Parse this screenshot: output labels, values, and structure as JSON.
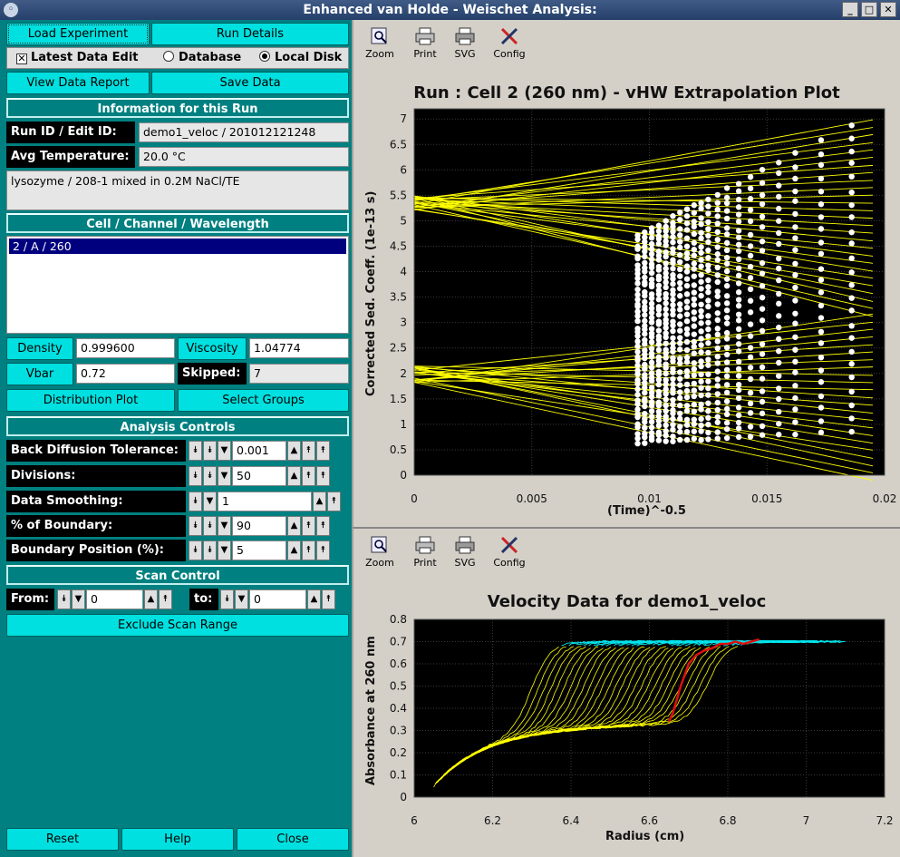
{
  "window": {
    "title": "Enhanced van Holde - Weischet Analysis:",
    "menu_glyph": "◦",
    "min_glyph": "_",
    "max_glyph": "□",
    "close_glyph": "✕"
  },
  "left": {
    "load_experiment": "Load Experiment",
    "run_details": "Run Details",
    "latest_data_edit": "Latest Data Edit",
    "latest_checked_glyph": "✕",
    "database": "Database",
    "local_disk": "Local Disk",
    "view_data_report": "View Data Report",
    "save_data": "Save Data",
    "info_header": "Information for this Run",
    "run_id_label": "Run ID / Edit ID:",
    "run_id_value": "demo1_veloc / 201012121248",
    "avg_temp_label": "Avg Temperature:",
    "avg_temp_value": "20.0 °C",
    "description": "lysozyme / 208-1 mixed in 0.2M NaCl/TE",
    "ccw_header": "Cell / Channel / Wavelength",
    "ccw_items": [
      "2 / A / 260"
    ],
    "density_label": "Density",
    "density_value": "0.999600",
    "viscosity_label": "Viscosity",
    "viscosity_value": "1.04774",
    "vbar_label": "Vbar",
    "vbar_value": "0.72",
    "skipped_label": "Skipped:",
    "skipped_value": "7",
    "distribution_plot": "Distribution Plot",
    "select_groups": "Select Groups",
    "analysis_header": "Analysis Controls",
    "back_diffusion_label": "Back Diffusion Tolerance:",
    "back_diffusion_value": "0.001",
    "divisions_label": "Divisions:",
    "divisions_value": "50",
    "smoothing_label": "Data Smoothing:",
    "smoothing_value": "1",
    "boundary_label": "% of Boundary:",
    "boundary_value": "90",
    "boundary_pos_label": "Boundary Position (%):",
    "boundary_pos_value": "5",
    "scan_header": "Scan Control",
    "from_label": "From:",
    "from_value": "0",
    "to_label": "to:",
    "to_value": "0",
    "exclude_scan": "Exclude Scan Range",
    "reset": "Reset",
    "help": "Help",
    "close": "Close",
    "glyph_dbl_down": "⯯",
    "glyph_down": "▼",
    "glyph_up": "▲",
    "glyph_dbl_up": "⯭"
  },
  "toolbar": {
    "zoom": "Zoom",
    "print": "Print",
    "svg": "SVG",
    "config": "Config"
  },
  "colors": {
    "panel_teal": "#008080",
    "button_cyan": "#00e0e0",
    "plot_bg": "#000000",
    "fit_lines": "#ffff00",
    "points": "#ffffff",
    "velocity_cyan": "#00e5ee",
    "boundary_red": "#dd1111"
  },
  "chart_data": [
    {
      "type": "scatter",
      "title": "Run : Cell 2 (260 nm) - vHW Extrapolation Plot",
      "xlabel": "(Time)^-0.5",
      "ylabel": "Corrected Sed. Coeff. (1e-13 s)",
      "xlim": [
        0,
        0.02
      ],
      "ylim": [
        0,
        7.2
      ],
      "x_ticks": [
        "0",
        "0.005",
        "0.01",
        "0.015",
        "0.02"
      ],
      "y_ticks": [
        "0",
        "0.5",
        "1",
        "1.5",
        "2",
        "2.5",
        "3",
        "3.5",
        "4",
        "4.5",
        "5",
        "5.5",
        "6",
        "6.5",
        "7"
      ],
      "grid": true,
      "point_x_columns": [
        0.0095,
        0.0098,
        0.0101,
        0.0104,
        0.0107,
        0.011,
        0.0113,
        0.0116,
        0.0119,
        0.0122,
        0.0125,
        0.0129,
        0.0133,
        0.0138,
        0.0143,
        0.0148,
        0.0155,
        0.0162,
        0.0173,
        0.0186
      ],
      "divisions": 50,
      "intercept_clusters": [
        {
          "s_at_x0": 5.35
        },
        {
          "s_at_x0": 2.0
        }
      ],
      "line_endpoints_at_x_0_0185": {
        "min": 0.0,
        "max": 6.9
      },
      "point_range_s": [
        0.6,
        6.8
      ]
    },
    {
      "type": "line",
      "title": "Velocity Data for demo1_veloc",
      "xlabel": "Radius (cm)",
      "ylabel": "Absorbance at 260 nm",
      "xlim": [
        6.0,
        7.2
      ],
      "ylim": [
        0,
        0.8
      ],
      "x_ticks": [
        "6",
        "6.2",
        "6.4",
        "6.6",
        "6.8",
        "7",
        "7.2"
      ],
      "y_ticks": [
        "0",
        "0.1",
        "0.2",
        "0.3",
        "0.4",
        "0.5",
        "0.6",
        "0.7",
        "0.8"
      ],
      "grid": true,
      "scan_count": 28,
      "meniscus_radius": 6.05,
      "plateau_absorbance": 0.7,
      "boundary_midpoints_range": [
        6.3,
        6.75
      ],
      "highlight_scan": {
        "name": "",
        "x": [
          6.65,
          6.66,
          6.68,
          6.7,
          6.72,
          6.74,
          6.76,
          6.78,
          6.8,
          6.82,
          6.84,
          6.86,
          6.88
        ],
        "y": [
          0.34,
          0.38,
          0.5,
          0.6,
          0.64,
          0.66,
          0.67,
          0.69,
          0.69,
          0.7,
          0.69,
          0.7,
          0.71
        ]
      }
    }
  ]
}
